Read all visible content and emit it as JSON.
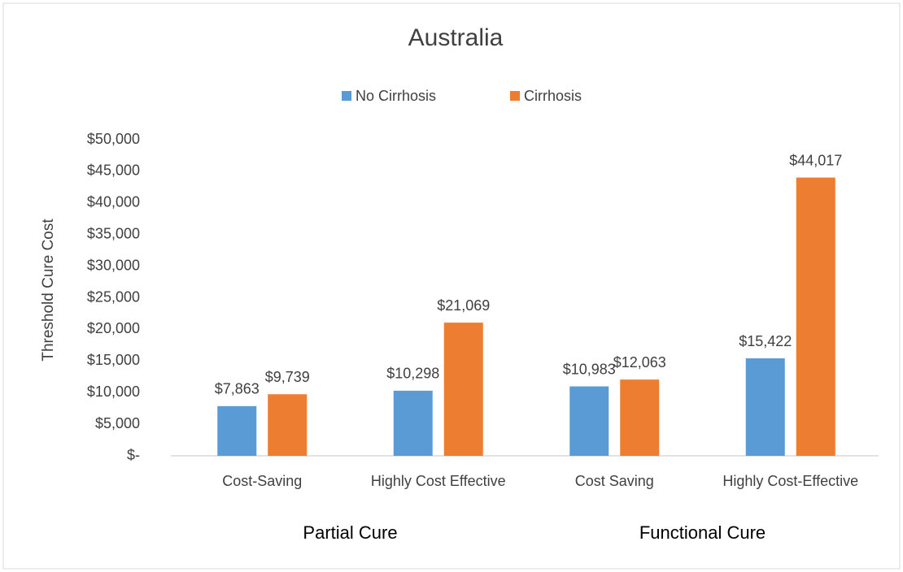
{
  "chart_data": {
    "type": "bar",
    "title": "Australia",
    "categories": [
      "Cost-Saving",
      "Highly Cost Effective",
      "Cost Saving",
      "Highly Cost-Effective"
    ],
    "groups": [
      "Partial Cure",
      "Functional Cure"
    ],
    "ylabel": "Threshold Cure Cost",
    "series": [
      {
        "name": "No Cirrhosis",
        "color": "#5b9bd5",
        "values": [
          7863,
          10298,
          10983,
          15422
        ],
        "value_labels": [
          "$7,863",
          "$10,298",
          "$10,983",
          "$15,422"
        ]
      },
      {
        "name": "Cirrhosis",
        "color": "#ed7d31",
        "values": [
          9739,
          21069,
          12063,
          44017
        ],
        "value_labels": [
          "$9,739",
          "$21,069",
          "$12,063",
          "$44,017"
        ]
      }
    ],
    "ylim": [
      0,
      50000
    ],
    "yticks": [
      {
        "value": 0,
        "label": "$-"
      },
      {
        "value": 5000,
        "label": "$5,000"
      },
      {
        "value": 10000,
        "label": "$10,000"
      },
      {
        "value": 15000,
        "label": "$15,000"
      },
      {
        "value": 20000,
        "label": "$20,000"
      },
      {
        "value": 25000,
        "label": "$25,000"
      },
      {
        "value": 30000,
        "label": "$30,000"
      },
      {
        "value": 35000,
        "label": "$35,000"
      },
      {
        "value": 40000,
        "label": "$40,000"
      },
      {
        "value": 45000,
        "label": "$45,000"
      },
      {
        "value": 50000,
        "label": "$50,000"
      }
    ],
    "grid": false
  }
}
